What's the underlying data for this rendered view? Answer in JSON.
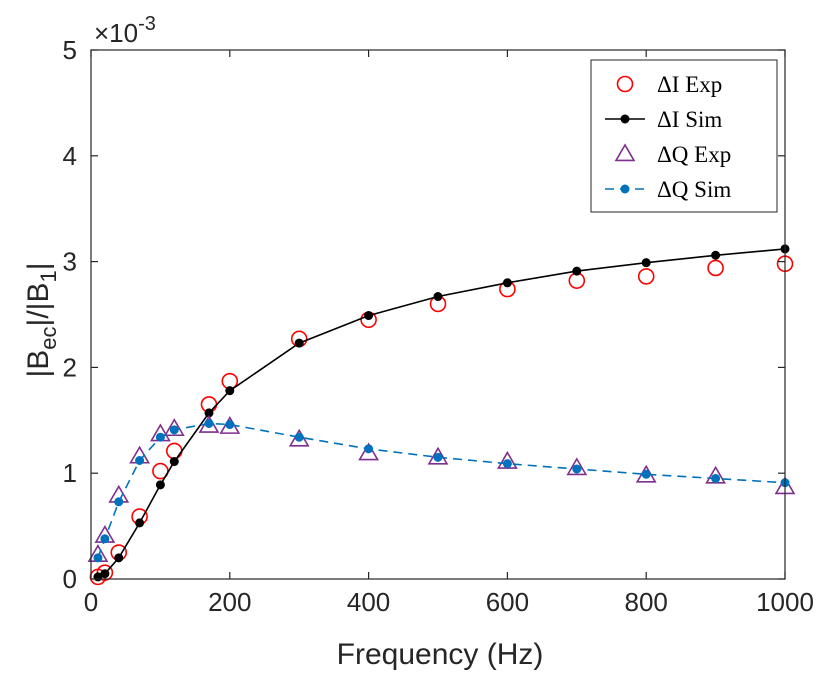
{
  "chart_data": {
    "type": "line",
    "xlabel": "Frequency (Hz)",
    "ylabel_main": "|B",
    "ylabel_sub1": "ec",
    "ylabel_mid": "|/|B",
    "ylabel_sub2": "1",
    "ylabel_end": "|",
    "xlim": [
      0,
      1000
    ],
    "ylim": [
      0,
      5
    ],
    "x_ticks": [
      "0",
      "200",
      "400",
      "600",
      "800",
      "1000"
    ],
    "y_ticks": [
      "0",
      "1",
      "2",
      "3",
      "4",
      "5"
    ],
    "scale_multiplier": "×10",
    "scale_exponent": "-3",
    "legend_position": "top-right",
    "grid": false,
    "series": [
      {
        "name": "ΔI Exp",
        "style": "red-circle-markers",
        "color": "#ff0000",
        "x": [
          10,
          20,
          40,
          70,
          100,
          120,
          170,
          200,
          300,
          400,
          500,
          600,
          700,
          800,
          900,
          1000
        ],
        "values": [
          0.02,
          0.06,
          0.25,
          0.59,
          1.02,
          1.21,
          1.65,
          1.87,
          2.27,
          2.45,
          2.6,
          2.74,
          2.82,
          2.86,
          2.94,
          2.98
        ]
      },
      {
        "name": "ΔI Sim",
        "style": "black-solid-line-dots",
        "color": "#000000",
        "x": [
          10,
          20,
          40,
          70,
          100,
          120,
          170,
          200,
          300,
          400,
          500,
          600,
          700,
          800,
          900,
          1000
        ],
        "values": [
          0.02,
          0.05,
          0.2,
          0.53,
          0.89,
          1.11,
          1.57,
          1.78,
          2.23,
          2.49,
          2.67,
          2.8,
          2.91,
          2.99,
          3.06,
          3.12
        ]
      },
      {
        "name": "ΔQ Exp",
        "style": "purple-triangle-markers",
        "color": "#7e2f8e",
        "x": [
          10,
          20,
          40,
          70,
          100,
          120,
          170,
          200,
          300,
          400,
          500,
          600,
          700,
          800,
          900,
          1000
        ],
        "values": [
          0.23,
          0.41,
          0.79,
          1.16,
          1.37,
          1.42,
          1.45,
          1.44,
          1.32,
          1.19,
          1.15,
          1.11,
          1.05,
          0.98,
          0.97,
          0.87
        ]
      },
      {
        "name": "ΔQ Sim",
        "style": "blue-dashed-line-dots",
        "color": "#0072bd",
        "x": [
          10,
          20,
          40,
          70,
          100,
          120,
          170,
          200,
          300,
          400,
          500,
          600,
          700,
          800,
          900,
          1000
        ],
        "values": [
          0.2,
          0.38,
          0.73,
          1.12,
          1.34,
          1.41,
          1.47,
          1.46,
          1.34,
          1.23,
          1.15,
          1.09,
          1.04,
          0.99,
          0.95,
          0.91
        ]
      }
    ]
  }
}
